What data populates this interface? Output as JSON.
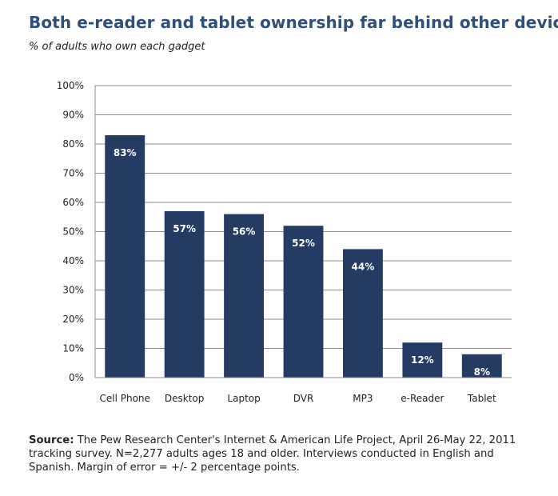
{
  "header": {
    "title": "Both e-reader and tablet ownership far behind other devices",
    "subtitle": "% of adults who own each gadget"
  },
  "chart_data": {
    "type": "bar",
    "title": "Both e-reader and tablet ownership far behind other devices",
    "subtitle": "% of adults who own each gadget",
    "xlabel": "",
    "ylabel": "",
    "categories": [
      "Cell Phone",
      "Desktop",
      "Laptop",
      "DVR",
      "MP3",
      "e-Reader",
      "Tablet"
    ],
    "values": [
      83,
      57,
      56,
      52,
      44,
      12,
      8
    ],
    "data_labels": [
      "83%",
      "57%",
      "56%",
      "52%",
      "44%",
      "12%",
      "8%"
    ],
    "ylim": [
      0,
      100
    ],
    "yticks": [
      0,
      10,
      20,
      30,
      40,
      50,
      60,
      70,
      80,
      90,
      100
    ],
    "ytick_labels": [
      "0%",
      "10%",
      "20%",
      "30%",
      "40%",
      "50%",
      "60%",
      "70%",
      "80%",
      "90%",
      "100%"
    ],
    "grid": true,
    "bar_color": "#243b64",
    "legend": "none"
  },
  "footer": {
    "source_label": "Source:",
    "source_text": "The Pew Research Center's Internet & American Life Project, April 26-May 22, 2011 tracking survey. N=2,277 adults ages 18 and older. Interviews conducted in English and Spanish. Margin of error = +/- 2 percentage points."
  },
  "colors": {
    "title": "#2f4f79",
    "bar": "#243b64",
    "grid": "#8c8c8c",
    "text": "#222222"
  }
}
